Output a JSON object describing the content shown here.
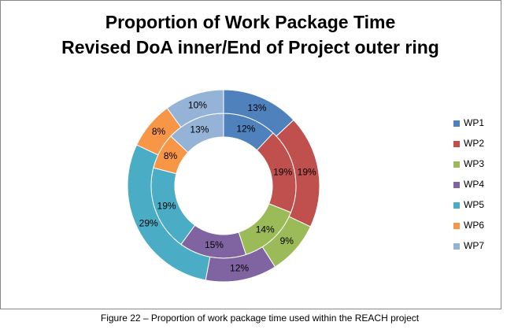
{
  "chart_data": {
    "type": "doughnut",
    "title": [
      "Proportion of Work Package Time",
      "Revised DoA inner/End of Project outer ring"
    ],
    "categories": [
      "WP1",
      "WP2",
      "WP3",
      "WP4",
      "WP5",
      "WP6",
      "WP7"
    ],
    "colors": [
      "#4f81bd",
      "#c0504d",
      "#9bbb59",
      "#8064a2",
      "#4bacc6",
      "#f79646",
      "#95b3d7"
    ],
    "series": [
      {
        "values": [
          12,
          19,
          14,
          15,
          19,
          8,
          13
        ],
        "value_labels": [
          "12%",
          "19%",
          "14%",
          "15%",
          "19%",
          "8%",
          "13%"
        ]
      },
      {
        "values": [
          13,
          19,
          9,
          12,
          29,
          8,
          10
        ],
        "value_labels": [
          "13%",
          "19%",
          "9%",
          "12%",
          "29%",
          "8%",
          "10%"
        ]
      }
    ],
    "legend": "right"
  },
  "caption": "Figure 22 – Proportion of work package time used within the REACH project"
}
